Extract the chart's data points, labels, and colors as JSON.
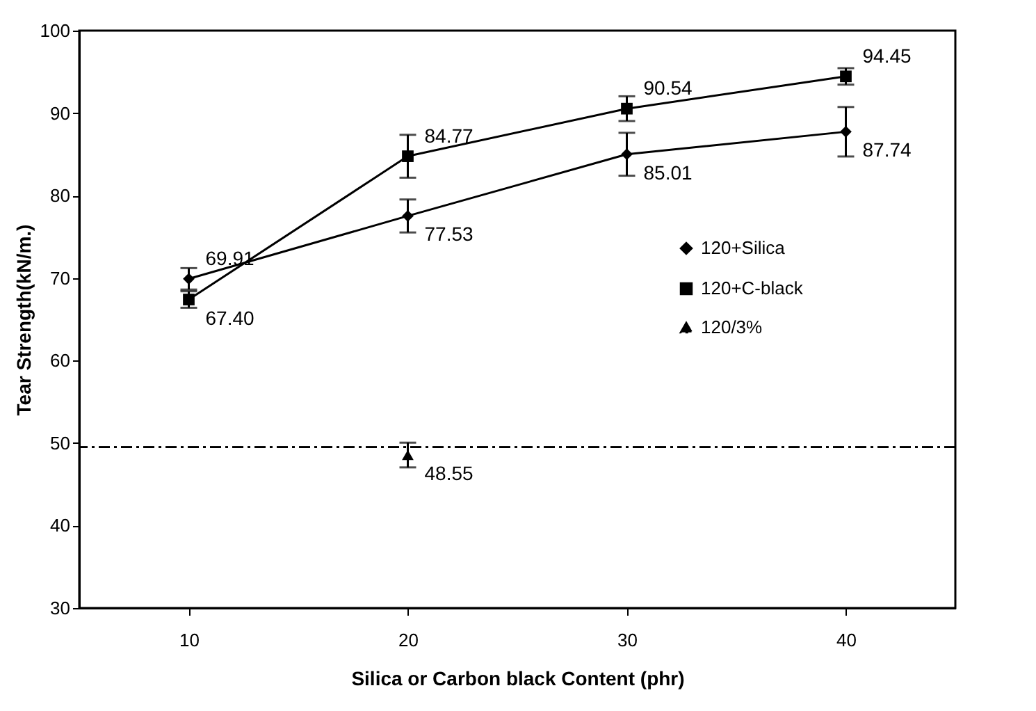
{
  "chart_data": {
    "type": "line",
    "xlabel": "Silica or Carbon black Content (phr)",
    "ylabel": "Tear Strength(kN/m.)",
    "categories": [
      "10",
      "20",
      "30",
      "40"
    ],
    "series": [
      {
        "name": "120+Silica",
        "color": "#000000",
        "marker": "diamond",
        "values": [
          69.91,
          77.53,
          85.01,
          87.74
        ],
        "value_labels": [
          "69.91",
          "77.53",
          "85.01",
          "87.74"
        ],
        "errors": [
          1.3,
          2,
          2.6,
          3
        ]
      },
      {
        "name": "120+C-black",
        "color": "#000000",
        "marker": "square",
        "values": [
          67.4,
          84.77,
          90.54,
          94.45
        ],
        "value_labels": [
          "67.40",
          "84.77",
          "90.54",
          "94.45"
        ],
        "errors": [
          1,
          2.6,
          1.5,
          1
        ]
      },
      {
        "name": "120/3%",
        "color": "#000000",
        "marker": "triangle",
        "line_style": "dashed",
        "values": [
          null,
          48.55,
          null,
          null
        ],
        "value_labels": [
          null,
          "48.55",
          null,
          null
        ],
        "errors": [
          null,
          1.5,
          null,
          null
        ]
      }
    ],
    "ref_lines": [
      {
        "axis": "y",
        "value": 49.5,
        "line_style": "dashed",
        "color": "#000000"
      }
    ],
    "ylim": [
      30,
      100
    ],
    "yticks": [
      30,
      40,
      50,
      60,
      70,
      80,
      90,
      100
    ],
    "grid": false,
    "legend": "right"
  }
}
